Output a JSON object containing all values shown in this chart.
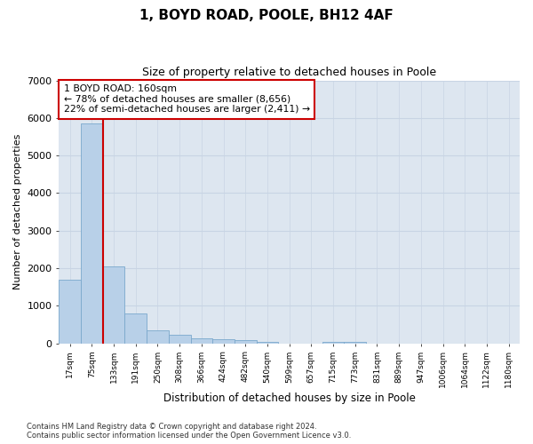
{
  "title1": "1, BOYD ROAD, POOLE, BH12 4AF",
  "title2": "Size of property relative to detached houses in Poole",
  "xlabel": "Distribution of detached houses by size in Poole",
  "ylabel": "Number of detached properties",
  "categories": [
    "17sqm",
    "75sqm",
    "133sqm",
    "191sqm",
    "250sqm",
    "308sqm",
    "366sqm",
    "424sqm",
    "482sqm",
    "540sqm",
    "599sqm",
    "657sqm",
    "715sqm",
    "773sqm",
    "831sqm",
    "889sqm",
    "947sqm",
    "1006sqm",
    "1064sqm",
    "1122sqm",
    "1180sqm"
  ],
  "values": [
    1700,
    5850,
    2050,
    800,
    350,
    230,
    130,
    100,
    80,
    50,
    0,
    0,
    50,
    30,
    0,
    0,
    0,
    0,
    0,
    0,
    0
  ],
  "bar_color": "#b8d0e8",
  "bar_edge_color": "#7aA8CC",
  "vline_x": 1.5,
  "vline_color": "#cc0000",
  "annotation_text": "1 BOYD ROAD: 160sqm\n← 78% of detached houses are smaller (8,656)\n22% of semi-detached houses are larger (2,411) →",
  "annotation_box_facecolor": "white",
  "annotation_box_edgecolor": "#cc0000",
  "ylim": [
    0,
    7000
  ],
  "yticks": [
    0,
    1000,
    2000,
    3000,
    4000,
    5000,
    6000,
    7000
  ],
  "grid_color": "#c8d4e4",
  "bg_color": "#dde6f0",
  "footer_line1": "Contains HM Land Registry data © Crown copyright and database right 2024.",
  "footer_line2": "Contains public sector information licensed under the Open Government Licence v3.0."
}
